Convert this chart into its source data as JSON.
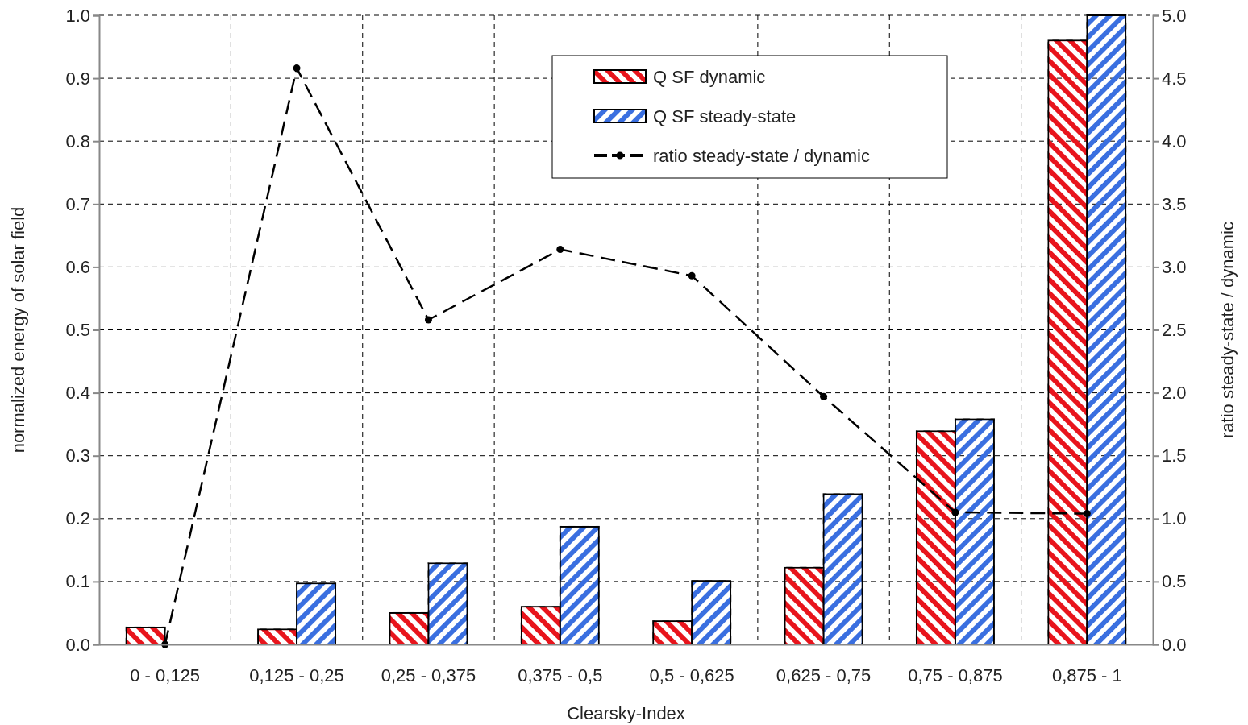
{
  "chart_data": {
    "type": "bar",
    "xlabel": "Clearsky-Index",
    "ylabel": "normalized energy of solar field",
    "y2label": "ratio steady-state / dynamic",
    "categories": [
      "0 - 0,125",
      "0,125 - 0,25",
      "0,25 - 0,375",
      "0,375 - 0,5",
      "0,5 - 0,625",
      "0,625 - 0,75",
      "0,75 - 0,875",
      "0,875 - 1"
    ],
    "series": [
      {
        "name": "Q SF dynamic",
        "color": "#e8141c",
        "values": [
          0.027,
          0.024,
          0.05,
          0.06,
          0.037,
          0.122,
          0.339,
          0.96
        ]
      },
      {
        "name": "Q SF steady-state",
        "color": "#3a6fe0",
        "values": [
          0,
          0.097,
          0.129,
          0.187,
          0.101,
          0.239,
          0.358,
          1.0
        ]
      },
      {
        "name": "ratio steady-state / dynamic",
        "type": "line",
        "axis": "y2",
        "color": "#000000",
        "marker": "circle",
        "line_style": "dashed",
        "values": [
          0,
          4.58,
          2.58,
          3.14,
          2.93,
          1.97,
          1.05,
          1.04
        ]
      }
    ],
    "ylim": [
      0,
      1
    ],
    "yticks": [
      {
        "value": 0,
        "label": "0.0"
      },
      {
        "value": 0.1,
        "label": "0.1"
      },
      {
        "value": 0.2,
        "label": "0.2"
      },
      {
        "value": 0.3,
        "label": "0.3"
      },
      {
        "value": 0.4,
        "label": "0.4"
      },
      {
        "value": 0.5,
        "label": "0.5"
      },
      {
        "value": 0.6,
        "label": "0.6"
      },
      {
        "value": 0.7,
        "label": "0.7"
      },
      {
        "value": 0.8,
        "label": "0.8"
      },
      {
        "value": 0.9,
        "label": "0.9"
      },
      {
        "value": 1,
        "label": "1.0"
      }
    ],
    "y2lim": [
      0,
      5
    ],
    "y2ticks": [
      {
        "value": 0,
        "label": "0.0"
      },
      {
        "value": 0.5,
        "label": "0.5"
      },
      {
        "value": 1,
        "label": "1.0"
      },
      {
        "value": 1.5,
        "label": "1.5"
      },
      {
        "value": 2,
        "label": "2.0"
      },
      {
        "value": 2.5,
        "label": "2.5"
      },
      {
        "value": 3,
        "label": "3.0"
      },
      {
        "value": 3.5,
        "label": "3.5"
      },
      {
        "value": 4,
        "label": "4.0"
      },
      {
        "value": 4.5,
        "label": "4.5"
      },
      {
        "value": 5,
        "label": "5.0"
      }
    ],
    "grid": true,
    "legend": "top right"
  }
}
